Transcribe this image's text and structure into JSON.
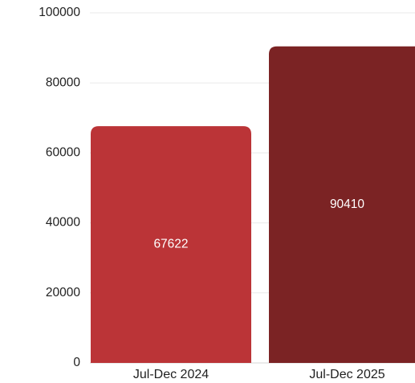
{
  "chart_data": {
    "type": "bar",
    "title": "",
    "xlabel": "",
    "ylabel": "",
    "ylim": [
      0,
      100000
    ],
    "yticks": [
      0,
      20000,
      40000,
      60000,
      80000,
      100000
    ],
    "categories": [
      "Jul-Dec 2024",
      "Jul-Dec 2025"
    ],
    "values": [
      67622,
      90410
    ],
    "value_labels": [
      "67622",
      "90410"
    ],
    "colors": [
      "#bb3437",
      "#7b2324"
    ],
    "grid": true,
    "legend": "none"
  }
}
